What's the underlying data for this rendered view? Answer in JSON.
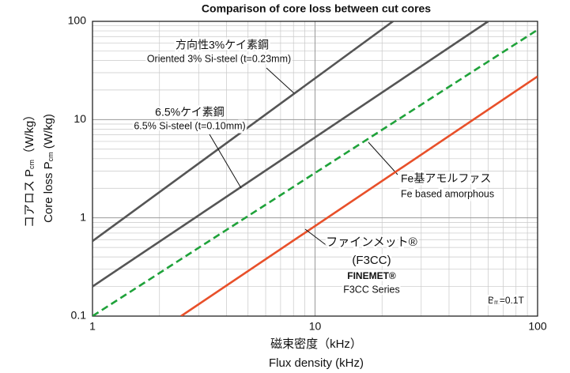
{
  "chart_data": {
    "type": "line",
    "title": "Comparison of core loss between cut cores",
    "xlabel": [
      "磁束密度（kHz）",
      "Flux density (kHz)"
    ],
    "ylabel": [
      [
        "コアロス P",
        "cm",
        "（W/kg）"
      ],
      [
        "Core loss P",
        "cm",
        " (W/kg)"
      ]
    ],
    "xlim": [
      1,
      100
    ],
    "ylim": [
      0.1,
      100
    ],
    "xticks": [
      1,
      10,
      100
    ],
    "yticks": [
      0.1,
      1,
      10,
      100
    ],
    "log_x": true,
    "log_y": true,
    "grid": true,
    "series": [
      {
        "name": [
          "方向性3%ケイ素鋼",
          "Oriented 3% Si-steel (t=0.23mm)"
        ],
        "color": "#555555",
        "dash": false,
        "x": [
          1,
          22.4
        ],
        "values": [
          0.58,
          100
        ]
      },
      {
        "name": [
          "6.5%ケイ素鋼",
          "6.5% Si-steel (t=0.10mm)"
        ],
        "color": "#555555",
        "dash": false,
        "x": [
          1,
          60
        ],
        "values": [
          0.2,
          100
        ]
      },
      {
        "name": [
          "Fe基アモルファス",
          "Fe based amorphous"
        ],
        "color": "#1fa23a",
        "dash": true,
        "x": [
          1,
          100
        ],
        "values": [
          0.1,
          82
        ]
      },
      {
        "name": [
          "ファインメット®",
          "(F3CC)",
          "FINEMET®",
          "F3CC Series"
        ],
        "color": "#e8502a",
        "dash": false,
        "x": [
          2.5,
          100
        ],
        "values": [
          0.1,
          27.5
        ]
      }
    ],
    "annotation": [
      "B",
      "m",
      "=0.1T"
    ]
  }
}
